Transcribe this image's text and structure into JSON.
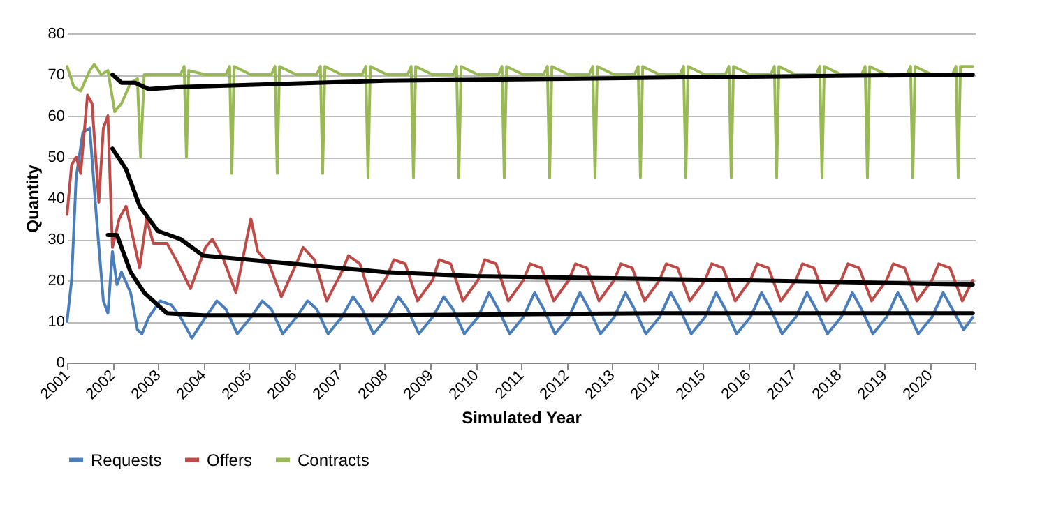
{
  "chart_data": {
    "type": "line",
    "xlabel": "Simulated Year",
    "ylabel": "Quantity",
    "xlim": [
      2001,
      2021
    ],
    "xticks": [
      2001,
      2002,
      2003,
      2004,
      2005,
      2006,
      2007,
      2008,
      2009,
      2010,
      2011,
      2012,
      2013,
      2014,
      2015,
      2016,
      2017,
      2018,
      2019,
      2020,
      {
        "value": 2021,
        "label": null
      }
    ],
    "ylim": [
      0,
      80
    ],
    "yticks": [
      0,
      10,
      20,
      30,
      40,
      50,
      60,
      70,
      80
    ],
    "grid": "y",
    "legend": "bottom",
    "marker": "none",
    "line_style": "solid",
    "series": [
      {
        "name": "Requests",
        "color": "#4a7ebb",
        "x": [
          2001,
          2001.1,
          2001.2,
          2001.35,
          2001.5,
          2001.65,
          2001.8,
          2001.9,
          2002,
          2002.1,
          2002.2,
          2002.4,
          2002.55,
          2002.65,
          2002.8,
          2003.05,
          2003.3,
          2003.5,
          2003.75,
          2004.05,
          2004.3,
          2004.5,
          2004.75,
          2005.05,
          2005.3,
          2005.5,
          2005.75,
          2006.05,
          2006.3,
          2006.5,
          2006.75,
          2007.05,
          2007.3,
          2007.5,
          2007.75,
          2008.05,
          2008.3,
          2008.5,
          2008.75,
          2009.05,
          2009.3,
          2009.5,
          2009.75,
          2010.05,
          2010.3,
          2010.5,
          2010.75,
          2011.05,
          2011.3,
          2011.5,
          2011.75,
          2012.05,
          2012.3,
          2012.5,
          2012.75,
          2013.05,
          2013.3,
          2013.5,
          2013.75,
          2014.05,
          2014.3,
          2014.5,
          2014.75,
          2015.05,
          2015.3,
          2015.5,
          2015.75,
          2016.05,
          2016.3,
          2016.5,
          2016.75,
          2017.05,
          2017.3,
          2017.5,
          2017.75,
          2018.05,
          2018.3,
          2018.5,
          2018.75,
          2019.05,
          2019.3,
          2019.5,
          2019.75,
          2020.05,
          2020.3,
          2020.5,
          2020.75,
          2020.95
        ],
        "values": [
          10,
          20,
          45,
          56,
          57,
          35,
          15,
          12,
          27,
          19,
          22,
          17,
          8,
          7,
          11,
          15,
          14,
          11,
          6,
          11,
          15,
          13,
          7,
          11,
          15,
          13,
          7,
          11,
          15,
          13,
          7,
          11,
          16,
          13,
          7,
          11,
          16,
          13,
          7,
          11,
          16,
          13,
          7,
          11,
          17,
          13,
          7,
          11,
          17,
          13,
          7,
          11,
          17,
          13,
          7,
          11,
          17,
          13,
          7,
          11,
          17,
          13,
          7,
          11,
          17,
          13,
          7,
          11,
          17,
          13,
          7,
          11,
          17,
          13,
          7,
          11,
          17,
          13,
          7,
          11,
          17,
          13,
          7,
          11,
          17,
          13,
          8,
          11
        ]
      },
      {
        "name": "Offers",
        "color": "#be4b48",
        "x": [
          2001,
          2001.1,
          2001.2,
          2001.3,
          2001.45,
          2001.55,
          2001.7,
          2001.8,
          2001.9,
          2002,
          2002.15,
          2002.3,
          2002.5,
          2002.6,
          2002.75,
          2002.9,
          2003.05,
          2003.2,
          2003.45,
          2003.72,
          2004.05,
          2004.2,
          2004.45,
          2004.72,
          2005.05,
          2005.2,
          2005.45,
          2005.72,
          2006.05,
          2006.2,
          2006.45,
          2006.72,
          2007.05,
          2007.2,
          2007.45,
          2007.72,
          2008.05,
          2008.2,
          2008.45,
          2008.72,
          2009.05,
          2009.2,
          2009.45,
          2009.72,
          2010.05,
          2010.2,
          2010.45,
          2010.72,
          2011.05,
          2011.2,
          2011.45,
          2011.72,
          2012.05,
          2012.2,
          2012.45,
          2012.72,
          2013.05,
          2013.2,
          2013.45,
          2013.72,
          2014.05,
          2014.2,
          2014.45,
          2014.72,
          2015.05,
          2015.2,
          2015.45,
          2015.72,
          2016.05,
          2016.2,
          2016.45,
          2016.72,
          2017.05,
          2017.2,
          2017.45,
          2017.72,
          2018.05,
          2018.2,
          2018.45,
          2018.72,
          2019.05,
          2019.2,
          2019.45,
          2019.72,
          2020.05,
          2020.2,
          2020.45,
          2020.72,
          2020.95
        ],
        "values": [
          36,
          48,
          50,
          46,
          65,
          63,
          39,
          57,
          60,
          28,
          35,
          38,
          28,
          23,
          35,
          29,
          29,
          29,
          24,
          18,
          28,
          30,
          25,
          17,
          35,
          27,
          24,
          16,
          24,
          28,
          25,
          15,
          22,
          26,
          24,
          15,
          21,
          25,
          24,
          15,
          20,
          25,
          24,
          15,
          20,
          25,
          24,
          15,
          20,
          24,
          23,
          15,
          20,
          24,
          23,
          15,
          20,
          24,
          23,
          15,
          20,
          24,
          23,
          15,
          20,
          24,
          23,
          15,
          20,
          24,
          23,
          15,
          20,
          24,
          23,
          15,
          20,
          24,
          23,
          15,
          20,
          24,
          23,
          15,
          20,
          24,
          23,
          15,
          20
        ]
      },
      {
        "name": "Contracts",
        "color": "#98b954",
        "x": [
          2001,
          2001.15,
          2001.3,
          2001.5,
          2001.6,
          2001.75,
          2001.9,
          2002.05,
          2002.2,
          2002.4,
          2002.55,
          2002.62,
          2002.7,
          2003.05,
          2003.5,
          2003.58,
          2003.63,
          2003.68,
          2004.05,
          2004.5,
          2004.58,
          2004.63,
          2004.68,
          2005.05,
          2005.5,
          2005.58,
          2005.63,
          2005.68,
          2006.05,
          2006.5,
          2006.58,
          2006.63,
          2006.68,
          2007.05,
          2007.5,
          2007.58,
          2007.63,
          2007.68,
          2008.05,
          2008.5,
          2008.58,
          2008.63,
          2008.68,
          2009.05,
          2009.5,
          2009.58,
          2009.63,
          2009.68,
          2010.05,
          2010.5,
          2010.58,
          2010.63,
          2010.68,
          2011.05,
          2011.5,
          2011.58,
          2011.63,
          2011.68,
          2012.05,
          2012.5,
          2012.58,
          2012.63,
          2012.68,
          2013.05,
          2013.5,
          2013.58,
          2013.63,
          2013.68,
          2014.05,
          2014.5,
          2014.58,
          2014.63,
          2014.68,
          2015.05,
          2015.5,
          2015.58,
          2015.63,
          2015.68,
          2016.05,
          2016.5,
          2016.58,
          2016.63,
          2016.68,
          2017.05,
          2017.5,
          2017.58,
          2017.63,
          2017.68,
          2018.05,
          2018.5,
          2018.58,
          2018.63,
          2018.68,
          2019.05,
          2019.5,
          2019.58,
          2019.63,
          2019.68,
          2020.05,
          2020.5,
          2020.58,
          2020.63,
          2020.68,
          2020.95
        ],
        "values": [
          72,
          67,
          66,
          71,
          72.5,
          70,
          71,
          61,
          63,
          68,
          69,
          50,
          70,
          70,
          70,
          72,
          50,
          71,
          70,
          70,
          72,
          46,
          72,
          70,
          70,
          72,
          46,
          72,
          70,
          70,
          72,
          46,
          72,
          70,
          70,
          72,
          45,
          72,
          70,
          70,
          72,
          45,
          72,
          70,
          70,
          72,
          45,
          72,
          70,
          70,
          72,
          45,
          72,
          70,
          70,
          72,
          45,
          72,
          70,
          70,
          72,
          45,
          72,
          70,
          70,
          72,
          45,
          72,
          70,
          70,
          72,
          45,
          72,
          70,
          70,
          72,
          45,
          72,
          70,
          70,
          72,
          45,
          72,
          70,
          70,
          72,
          45,
          72,
          70,
          70,
          72,
          45,
          72,
          70,
          70,
          72,
          45,
          72,
          70,
          70,
          72,
          45,
          72,
          72
        ]
      },
      {
        "color": "#000000",
        "x": [
          2001.9,
          2002.1,
          2002.4,
          2002.7,
          2003.2,
          2004,
          2008,
          2014,
          2020.95
        ],
        "values": [
          31,
          31,
          22,
          17,
          12,
          11.5,
          11.5,
          12,
          12
        ]
      },
      {
        "color": "#000000",
        "x": [
          2002,
          2002.3,
          2002.6,
          2003,
          2003.5,
          2004,
          2005,
          2006,
          2008,
          2010,
          2013,
          2016,
          2020.95
        ],
        "values": [
          52,
          47,
          38,
          32,
          30,
          26,
          25,
          24,
          22,
          21,
          20.5,
          20,
          19
        ]
      },
      {
        "color": "#000000",
        "x": [
          2002,
          2002.2,
          2002.5,
          2002.8,
          2003.5,
          2005,
          2008,
          2012,
          2016,
          2020.95
        ],
        "values": [
          70,
          68,
          68,
          66.5,
          67,
          67.5,
          68.5,
          69,
          69.5,
          70
        ]
      }
    ]
  }
}
